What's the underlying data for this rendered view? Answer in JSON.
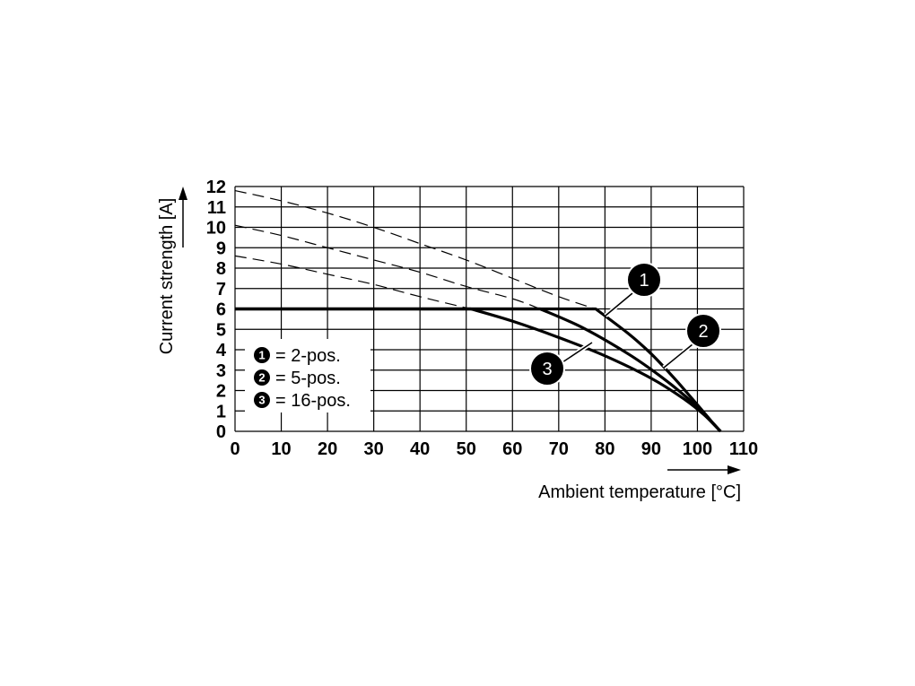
{
  "chart_data": {
    "type": "line",
    "xlabel": "Ambient temperature [°C]",
    "ylabel": "Current strength [A]",
    "xlim": [
      0,
      110
    ],
    "ylim": [
      0,
      12
    ],
    "x_ticks": [
      0,
      10,
      20,
      30,
      40,
      50,
      60,
      70,
      80,
      90,
      100,
      110
    ],
    "y_ticks": [
      0,
      1,
      2,
      3,
      4,
      5,
      6,
      7,
      8,
      9,
      10,
      11,
      12
    ],
    "grid": true,
    "rated_current": 6,
    "legend_placement": "bottom-left",
    "legend": [
      {
        "marker": "1",
        "text": "= 2-pos."
      },
      {
        "marker": "2",
        "text": "= 5-pos."
      },
      {
        "marker": "3",
        "text": "= 16-pos."
      }
    ],
    "series": [
      {
        "marker": "1",
        "solid": [
          [
            0,
            6
          ],
          [
            78,
            6
          ],
          [
            85,
            4.8
          ],
          [
            90,
            3.8
          ],
          [
            95,
            2.6
          ],
          [
            100,
            1.3
          ],
          [
            103,
            0.5
          ],
          [
            105,
            0
          ]
        ],
        "dashed": [
          [
            0,
            11.8
          ],
          [
            10,
            11.3
          ],
          [
            20,
            10.7
          ],
          [
            30,
            10.0
          ],
          [
            40,
            9.2
          ],
          [
            50,
            8.4
          ],
          [
            60,
            7.5
          ],
          [
            70,
            6.6
          ],
          [
            78,
            6
          ]
        ]
      },
      {
        "marker": "2",
        "solid": [
          [
            0,
            6
          ],
          [
            66,
            6
          ],
          [
            75,
            5.1
          ],
          [
            85,
            3.8
          ],
          [
            92,
            2.7
          ],
          [
            98,
            1.6
          ],
          [
            102,
            0.7
          ],
          [
            105,
            0
          ]
        ],
        "dashed": [
          [
            0,
            10.1
          ],
          [
            10,
            9.6
          ],
          [
            20,
            9.0
          ],
          [
            30,
            8.4
          ],
          [
            40,
            7.8
          ],
          [
            50,
            7.1
          ],
          [
            60,
            6.5
          ],
          [
            66,
            6
          ]
        ]
      },
      {
        "marker": "3",
        "solid": [
          [
            0,
            6
          ],
          [
            51,
            6
          ],
          [
            60,
            5.4
          ],
          [
            70,
            4.6
          ],
          [
            80,
            3.7
          ],
          [
            90,
            2.6
          ],
          [
            97,
            1.6
          ],
          [
            102,
            0.7
          ],
          [
            105,
            0
          ]
        ],
        "dashed": [
          [
            0,
            8.6
          ],
          [
            10,
            8.2
          ],
          [
            20,
            7.7
          ],
          [
            30,
            7.2
          ],
          [
            40,
            6.6
          ],
          [
            51,
            6
          ]
        ]
      }
    ]
  }
}
